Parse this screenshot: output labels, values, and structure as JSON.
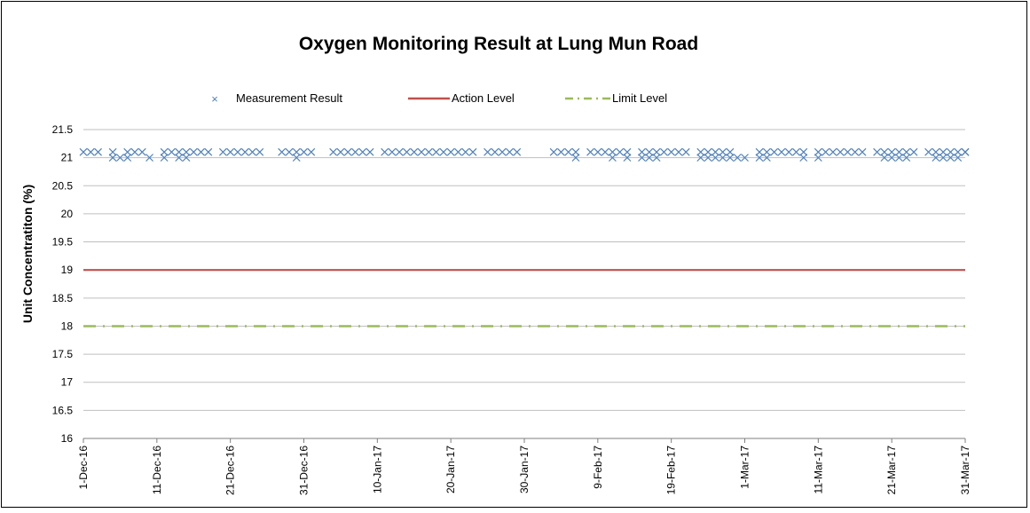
{
  "chart_data": {
    "type": "line",
    "title": "Oxygen Monitoring Result at Lung Mun Road",
    "ylabel": "Unit Concentratiton (%)",
    "xlabel": "",
    "ylim": [
      16,
      21.5
    ],
    "y_ticks": [
      16,
      16.5,
      17,
      17.5,
      18,
      18.5,
      19,
      19.5,
      20,
      20.5,
      21,
      21.5
    ],
    "y_tick_labels": [
      "16",
      "16.5",
      "17",
      "17.5",
      "18",
      "18.5",
      "19",
      "19.5",
      "20",
      "20.5",
      "21",
      "21.5"
    ],
    "x_range": [
      "2016-12-01",
      "2017-03-31"
    ],
    "x_ticks": [
      "2016-12-01",
      "2016-12-11",
      "2016-12-21",
      "2016-12-31",
      "2017-01-10",
      "2017-01-20",
      "2017-01-30",
      "2017-02-09",
      "2017-02-19",
      "2017-03-01",
      "2017-03-11",
      "2017-03-21",
      "2017-03-31"
    ],
    "x_tick_labels": [
      "1-Dec-16",
      "11-Dec-16",
      "21-Dec-16",
      "31-Dec-16",
      "10-Jan-17",
      "20-Jan-17",
      "30-Jan-17",
      "9-Feb-17",
      "19-Feb-17",
      "1-Mar-17",
      "11-Mar-17",
      "21-Mar-17",
      "31-Mar-17"
    ],
    "grid": "horizontal",
    "legend_position": "top",
    "series": [
      {
        "name": "Measurement Result",
        "style": "markers",
        "marker": "x",
        "color": "#4F81BD",
        "points": [
          [
            "2016-12-01",
            21.1
          ],
          [
            "2016-12-02",
            21.1
          ],
          [
            "2016-12-03",
            21.1
          ],
          [
            "2016-12-05",
            21.1
          ],
          [
            "2016-12-05",
            21.0
          ],
          [
            "2016-12-06",
            21.0
          ],
          [
            "2016-12-07",
            21.0
          ],
          [
            "2016-12-07",
            21.1
          ],
          [
            "2016-12-08",
            21.1
          ],
          [
            "2016-12-09",
            21.1
          ],
          [
            "2016-12-10",
            21.0
          ],
          [
            "2016-12-12",
            21.0
          ],
          [
            "2016-12-12",
            21.1
          ],
          [
            "2016-12-13",
            21.1
          ],
          [
            "2016-12-14",
            21.0
          ],
          [
            "2016-12-14",
            21.1
          ],
          [
            "2016-12-15",
            21.0
          ],
          [
            "2016-12-15",
            21.1
          ],
          [
            "2016-12-16",
            21.1
          ],
          [
            "2016-12-17",
            21.1
          ],
          [
            "2016-12-18",
            21.1
          ],
          [
            "2016-12-20",
            21.1
          ],
          [
            "2016-12-21",
            21.1
          ],
          [
            "2016-12-22",
            21.1
          ],
          [
            "2016-12-23",
            21.1
          ],
          [
            "2016-12-24",
            21.1
          ],
          [
            "2016-12-25",
            21.1
          ],
          [
            "2016-12-28",
            21.1
          ],
          [
            "2016-12-29",
            21.1
          ],
          [
            "2016-12-30",
            21.1
          ],
          [
            "2016-12-30",
            21.0
          ],
          [
            "2016-12-31",
            21.1
          ],
          [
            "2017-01-01",
            21.1
          ],
          [
            "2017-01-04",
            21.1
          ],
          [
            "2017-01-05",
            21.1
          ],
          [
            "2017-01-06",
            21.1
          ],
          [
            "2017-01-07",
            21.1
          ],
          [
            "2017-01-08",
            21.1
          ],
          [
            "2017-01-09",
            21.1
          ],
          [
            "2017-01-11",
            21.1
          ],
          [
            "2017-01-12",
            21.1
          ],
          [
            "2017-01-13",
            21.1
          ],
          [
            "2017-01-14",
            21.1
          ],
          [
            "2017-01-15",
            21.1
          ],
          [
            "2017-01-16",
            21.1
          ],
          [
            "2017-01-17",
            21.1
          ],
          [
            "2017-01-18",
            21.1
          ],
          [
            "2017-01-19",
            21.1
          ],
          [
            "2017-01-20",
            21.1
          ],
          [
            "2017-01-21",
            21.1
          ],
          [
            "2017-01-22",
            21.1
          ],
          [
            "2017-01-23",
            21.1
          ],
          [
            "2017-01-25",
            21.1
          ],
          [
            "2017-01-26",
            21.1
          ],
          [
            "2017-01-27",
            21.1
          ],
          [
            "2017-01-28",
            21.1
          ],
          [
            "2017-01-29",
            21.1
          ],
          [
            "2017-02-03",
            21.1
          ],
          [
            "2017-02-04",
            21.1
          ],
          [
            "2017-02-05",
            21.1
          ],
          [
            "2017-02-06",
            21.1
          ],
          [
            "2017-02-06",
            21.0
          ],
          [
            "2017-02-08",
            21.1
          ],
          [
            "2017-02-09",
            21.1
          ],
          [
            "2017-02-10",
            21.1
          ],
          [
            "2017-02-11",
            21.0
          ],
          [
            "2017-02-11",
            21.1
          ],
          [
            "2017-02-12",
            21.1
          ],
          [
            "2017-02-13",
            21.1
          ],
          [
            "2017-02-13",
            21.0
          ],
          [
            "2017-02-15",
            21.0
          ],
          [
            "2017-02-15",
            21.1
          ],
          [
            "2017-02-16",
            21.1
          ],
          [
            "2017-02-16",
            21.0
          ],
          [
            "2017-02-17",
            21.0
          ],
          [
            "2017-02-17",
            21.1
          ],
          [
            "2017-02-18",
            21.1
          ],
          [
            "2017-02-19",
            21.1
          ],
          [
            "2017-02-20",
            21.1
          ],
          [
            "2017-02-21",
            21.1
          ],
          [
            "2017-02-23",
            21.0
          ],
          [
            "2017-02-23",
            21.1
          ],
          [
            "2017-02-24",
            21.1
          ],
          [
            "2017-02-24",
            21.0
          ],
          [
            "2017-02-25",
            21.0
          ],
          [
            "2017-02-25",
            21.1
          ],
          [
            "2017-02-26",
            21.1
          ],
          [
            "2017-02-26",
            21.0
          ],
          [
            "2017-02-27",
            21.0
          ],
          [
            "2017-02-27",
            21.1
          ],
          [
            "2017-02-28",
            21.0
          ],
          [
            "2017-03-01",
            21.0
          ],
          [
            "2017-03-03",
            21.0
          ],
          [
            "2017-03-03",
            21.1
          ],
          [
            "2017-03-04",
            21.1
          ],
          [
            "2017-03-04",
            21.0
          ],
          [
            "2017-03-05",
            21.1
          ],
          [
            "2017-03-06",
            21.1
          ],
          [
            "2017-03-07",
            21.1
          ],
          [
            "2017-03-08",
            21.1
          ],
          [
            "2017-03-09",
            21.1
          ],
          [
            "2017-03-09",
            21.0
          ],
          [
            "2017-03-11",
            21.0
          ],
          [
            "2017-03-11",
            21.1
          ],
          [
            "2017-03-12",
            21.1
          ],
          [
            "2017-03-13",
            21.1
          ],
          [
            "2017-03-14",
            21.1
          ],
          [
            "2017-03-15",
            21.1
          ],
          [
            "2017-03-16",
            21.1
          ],
          [
            "2017-03-17",
            21.1
          ],
          [
            "2017-03-19",
            21.1
          ],
          [
            "2017-03-20",
            21.1
          ],
          [
            "2017-03-20",
            21.0
          ],
          [
            "2017-03-21",
            21.0
          ],
          [
            "2017-03-21",
            21.1
          ],
          [
            "2017-03-22",
            21.1
          ],
          [
            "2017-03-22",
            21.0
          ],
          [
            "2017-03-23",
            21.0
          ],
          [
            "2017-03-23",
            21.1
          ],
          [
            "2017-03-24",
            21.1
          ],
          [
            "2017-03-27",
            21.1
          ],
          [
            "2017-03-28",
            21.1
          ],
          [
            "2017-03-28",
            21.0
          ],
          [
            "2017-03-29",
            21.0
          ],
          [
            "2017-03-29",
            21.1
          ],
          [
            "2017-03-30",
            21.0
          ],
          [
            "2017-03-31",
            21.1
          ],
          [
            "2017-04-02",
            21.1
          ],
          [
            "2017-04-03",
            21.1
          ],
          [
            "2017-04-04",
            21.0
          ],
          [
            "2017-04-05",
            21.1
          ],
          [
            "2017-04-06",
            21.1
          ],
          [
            "2017-04-07",
            21.1
          ],
          [
            "2017-03-26",
            21.1
          ],
          [
            "2017-03-27",
            21.0
          ],
          [
            "2017-03-30",
            21.1
          ],
          [
            "2017-03-31",
            21.1
          ]
        ]
      },
      {
        "name": "Action Level",
        "style": "solid-line",
        "color": "#C0504D",
        "value": 19
      },
      {
        "name": "Limit Level",
        "style": "dash-dot-line",
        "color": "#9BBB59",
        "value": 18
      }
    ]
  }
}
